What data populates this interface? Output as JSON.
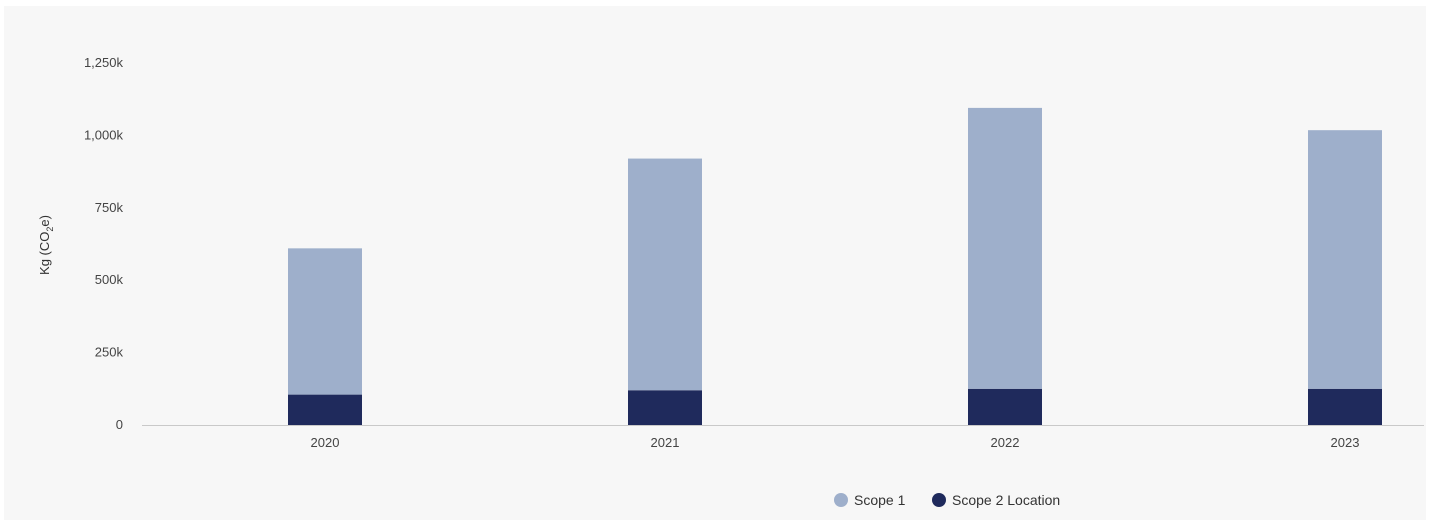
{
  "chart_data": {
    "type": "bar",
    "stacked": true,
    "categories": [
      "2020",
      "2021",
      "2022",
      "2023"
    ],
    "series": [
      {
        "name": "Scope 2 Location",
        "color": "#1f2a5c",
        "values": [
          105000,
          120000,
          125000,
          125000
        ]
      },
      {
        "name": "Scope 1",
        "color": "#9eafcb",
        "values": [
          505000,
          800000,
          970000,
          893000
        ]
      }
    ],
    "ylabel_main": "Kg (CO",
    "ylabel_sub": "2",
    "ylabel_end": "e)",
    "ylim": [
      0,
      1250000
    ],
    "yticks": [
      {
        "value": 0,
        "label": "0"
      },
      {
        "value": 250000,
        "label": "250k"
      },
      {
        "value": 500000,
        "label": "500k"
      },
      {
        "value": 750000,
        "label": "750k"
      },
      {
        "value": 1000000,
        "label": "1,000k"
      },
      {
        "value": 1250000,
        "label": "1,250k"
      }
    ],
    "grid": false,
    "legend": {
      "placement": "bottom-center",
      "items": [
        {
          "label": "Scope 1",
          "color": "#9eafcb"
        },
        {
          "label": "Scope 2 Location",
          "color": "#1f2a5c"
        }
      ]
    }
  }
}
